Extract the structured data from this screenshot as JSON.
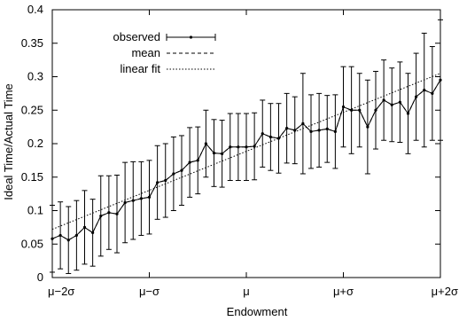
{
  "chart_data": {
    "type": "line",
    "xlabel": "Endowment",
    "ylabel": "Ideal Time/Actual Time",
    "xlim": [
      0,
      48
    ],
    "ylim": [
      0,
      0.4
    ],
    "x_ticks": [
      {
        "value": 0,
        "label": "μ−2σ"
      },
      {
        "value": 12,
        "label": "μ−σ"
      },
      {
        "value": 24,
        "label": "μ"
      },
      {
        "value": 36,
        "label": "μ+σ"
      },
      {
        "value": 48,
        "label": "μ+2σ"
      }
    ],
    "y_ticks": [
      "0",
      "0.05",
      "0.1",
      "0.15",
      "0.2",
      "0.25",
      "0.3",
      "0.35",
      "0.4"
    ],
    "legend_position": "top-left",
    "grid": false,
    "series": [
      {
        "name": "observed",
        "style": "line-points-errorbars",
        "x": [
          0,
          1,
          2,
          3,
          4,
          5,
          6,
          7,
          8,
          9,
          10,
          11,
          12,
          13,
          14,
          15,
          16,
          17,
          18,
          19,
          20,
          21,
          22,
          23,
          24,
          25,
          26,
          27,
          28,
          29,
          30,
          31,
          32,
          33,
          34,
          35,
          36,
          37,
          38,
          39,
          40,
          41,
          42,
          43,
          44,
          45,
          46,
          47,
          48
        ],
        "y": [
          0.058,
          0.063,
          0.056,
          0.063,
          0.075,
          0.067,
          0.092,
          0.097,
          0.095,
          0.112,
          0.115,
          0.118,
          0.12,
          0.142,
          0.145,
          0.155,
          0.16,
          0.172,
          0.175,
          0.2,
          0.186,
          0.185,
          0.195,
          0.195,
          0.195,
          0.196,
          0.215,
          0.21,
          0.208,
          0.223,
          0.22,
          0.23,
          0.218,
          0.22,
          0.222,
          0.218,
          0.255,
          0.25,
          0.25,
          0.225,
          0.25,
          0.265,
          0.258,
          0.262,
          0.245,
          0.27,
          0.28,
          0.275,
          0.295
        ],
        "y_err": [
          0.05,
          0.05,
          0.05,
          0.052,
          0.055,
          0.05,
          0.06,
          0.055,
          0.058,
          0.06,
          0.058,
          0.055,
          0.055,
          0.055,
          0.055,
          0.055,
          0.052,
          0.052,
          0.05,
          0.05,
          0.05,
          0.05,
          0.05,
          0.05,
          0.05,
          0.05,
          0.05,
          0.05,
          0.052,
          0.052,
          0.05,
          0.075,
          0.055,
          0.055,
          0.05,
          0.055,
          0.06,
          0.065,
          0.055,
          0.07,
          0.058,
          0.06,
          0.055,
          0.06,
          0.06,
          0.065,
          0.085,
          0.07,
          0.09
        ]
      },
      {
        "name": "mean",
        "style": "dashed",
        "x": [
          0,
          1,
          2,
          3,
          4,
          5,
          6,
          7,
          8,
          9,
          10,
          11,
          12,
          13,
          14,
          15,
          16,
          17,
          18,
          19,
          20,
          21,
          22,
          23,
          24,
          25,
          26,
          27,
          28,
          29,
          30,
          31,
          32,
          33,
          34,
          35,
          36,
          37,
          38,
          39,
          40,
          41,
          42,
          43,
          44,
          45,
          46,
          47,
          48
        ],
        "y": [
          0.058,
          0.063,
          0.056,
          0.063,
          0.075,
          0.067,
          0.092,
          0.097,
          0.095,
          0.112,
          0.115,
          0.118,
          0.12,
          0.142,
          0.145,
          0.155,
          0.16,
          0.172,
          0.175,
          0.2,
          0.186,
          0.185,
          0.195,
          0.195,
          0.195,
          0.196,
          0.215,
          0.21,
          0.208,
          0.223,
          0.22,
          0.23,
          0.218,
          0.22,
          0.222,
          0.218,
          0.255,
          0.25,
          0.25,
          0.225,
          0.25,
          0.265,
          0.258,
          0.262,
          0.245,
          0.27,
          0.28,
          0.275,
          0.295
        ]
      },
      {
        "name": "linear fit",
        "style": "dotted",
        "x": [
          0,
          48
        ],
        "y": [
          0.072,
          0.305
        ]
      }
    ]
  },
  "colors": {
    "axis": "#000000",
    "series": "#000000"
  }
}
